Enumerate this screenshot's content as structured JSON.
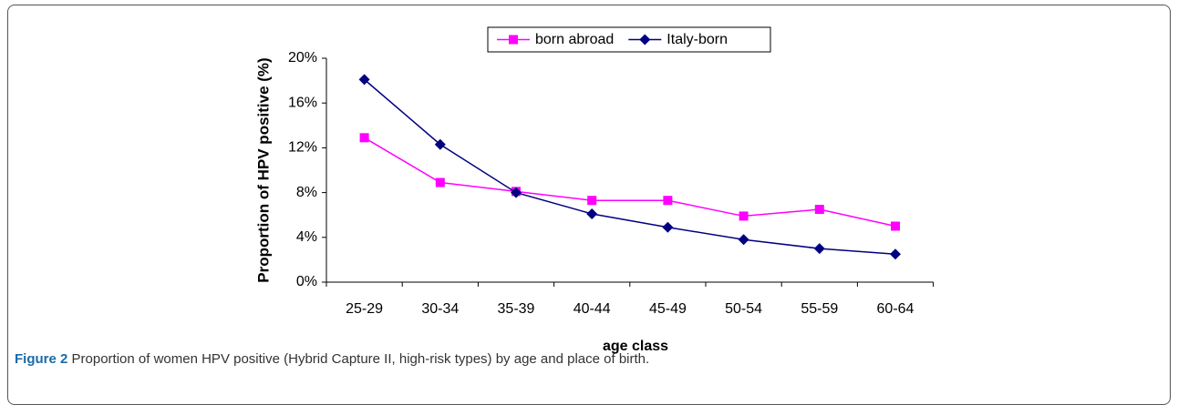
{
  "chart_data": {
    "type": "line",
    "categories": [
      "25-29",
      "30-34",
      "35-39",
      "40-44",
      "45-49",
      "50-54",
      "55-59",
      "60-64"
    ],
    "series": [
      {
        "name": "born abroad",
        "color": "#ff00ff",
        "marker": "square",
        "values": [
          12.9,
          8.9,
          8.1,
          7.3,
          7.3,
          5.9,
          6.5,
          5.0
        ]
      },
      {
        "name": "Italy-born",
        "color": "#000080",
        "marker": "diamond",
        "values": [
          18.1,
          12.3,
          8.0,
          6.1,
          4.9,
          3.8,
          3.0,
          2.5
        ]
      }
    ],
    "ylabel": "Proportion of HPV positive (%)",
    "xlabel": "age class",
    "ylim": [
      0,
      20
    ],
    "yticks": [
      {
        "value": 0,
        "label": "0%"
      },
      {
        "value": 4,
        "label": "4%"
      },
      {
        "value": 8,
        "label": "8%"
      },
      {
        "value": 12,
        "label": "12%"
      },
      {
        "value": 16,
        "label": "16%"
      },
      {
        "value": 20,
        "label": "20%"
      }
    ],
    "legend": "top"
  },
  "caption": {
    "label": "Figure 2",
    "text": "Proportion of women HPV positive (Hybrid Capture II, high-risk types) by age and place of birth."
  }
}
